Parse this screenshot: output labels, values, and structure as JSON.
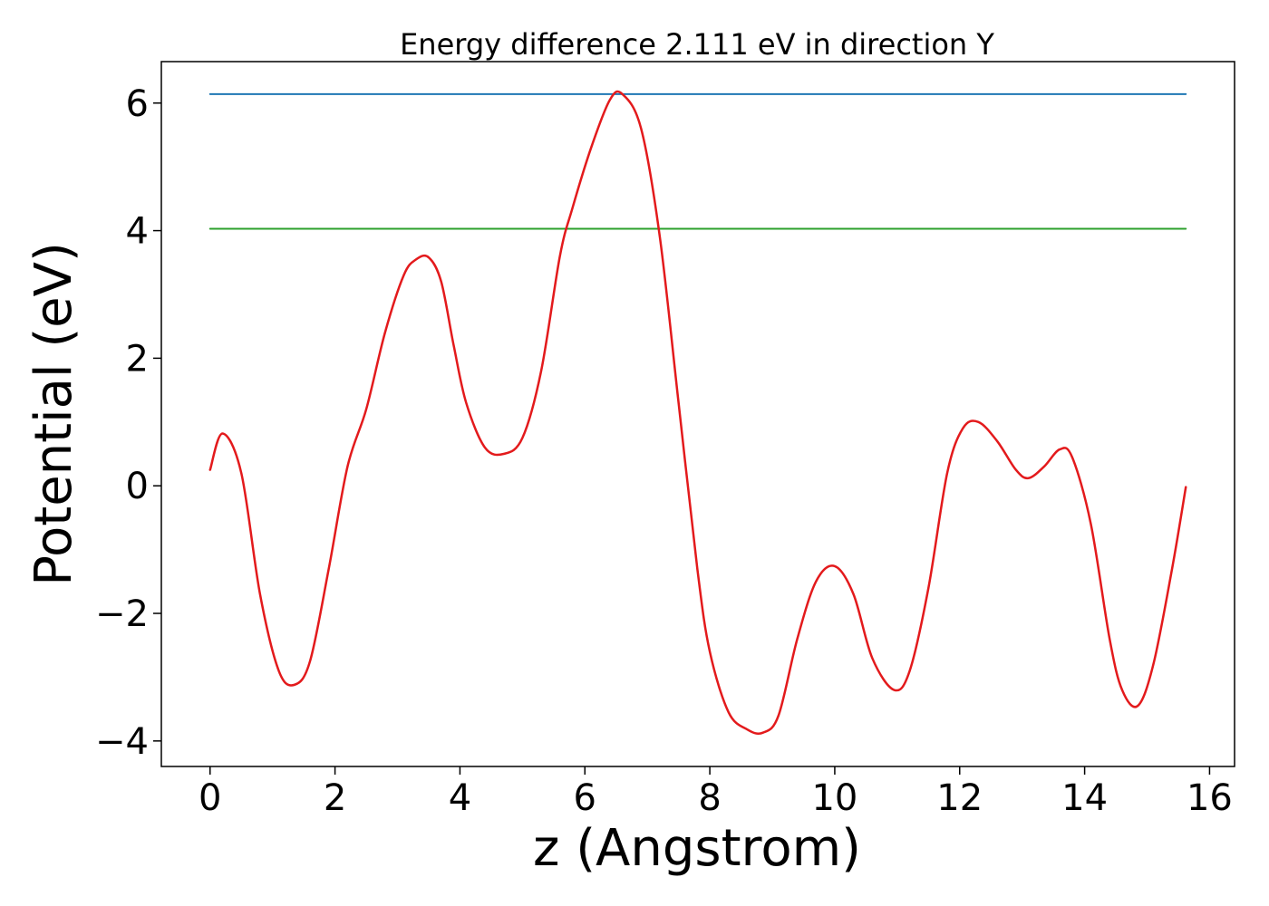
{
  "chart_data": {
    "type": "line",
    "title": "Energy difference 2.111 eV in direction Y",
    "xlabel": "z (Angstrom)",
    "ylabel": "Potential (eV)",
    "xlim": [
      -0.78,
      16.4
    ],
    "ylim": [
      -4.4,
      6.65
    ],
    "xticks": [
      0,
      2,
      4,
      6,
      8,
      10,
      12,
      14,
      16
    ],
    "xtick_labels": [
      "0",
      "2",
      "4",
      "6",
      "8",
      "10",
      "12",
      "14",
      "16"
    ],
    "yticks": [
      -4,
      -2,
      0,
      2,
      4,
      6
    ],
    "ytick_labels": [
      "−4",
      "−2",
      "0",
      "2",
      "4",
      "6"
    ],
    "grid": false,
    "legend": "none",
    "series": [
      {
        "color": "#1f77b4",
        "style": "horizontal-line",
        "x": [
          0,
          15.62
        ],
        "y": [
          6.14,
          6.14
        ]
      },
      {
        "color": "#2ca02c",
        "style": "horizontal-line",
        "x": [
          0,
          15.62
        ],
        "y": [
          4.03,
          4.03
        ]
      },
      {
        "color": "#e31a1c",
        "style": "curve",
        "x": [
          0,
          0.2,
          0.5,
          0.8,
          1.1,
          1.35,
          1.6,
          1.9,
          2.2,
          2.5,
          2.8,
          3.1,
          3.3,
          3.5,
          3.7,
          3.9,
          4.1,
          4.4,
          4.7,
          5.0,
          5.3,
          5.6,
          5.8,
          6.1,
          6.4,
          6.6,
          6.9,
          7.2,
          7.5,
          7.8,
          8.0,
          8.3,
          8.6,
          8.85,
          9.1,
          9.4,
          9.7,
          10.0,
          10.3,
          10.6,
          10.95,
          11.2,
          11.5,
          11.8,
          12.05,
          12.3,
          12.6,
          12.9,
          13.1,
          13.35,
          13.6,
          13.8,
          14.1,
          14.4,
          14.6,
          14.85,
          15.1,
          15.4,
          15.62
        ],
        "y": [
          0.25,
          0.82,
          0.2,
          -1.7,
          -2.9,
          -3.12,
          -2.75,
          -1.3,
          0.3,
          1.2,
          2.4,
          3.3,
          3.55,
          3.58,
          3.2,
          2.2,
          1.3,
          0.6,
          0.5,
          0.75,
          1.8,
          3.6,
          4.35,
          5.3,
          6.05,
          6.14,
          5.6,
          3.9,
          1.3,
          -1.3,
          -2.6,
          -3.55,
          -3.82,
          -3.87,
          -3.6,
          -2.4,
          -1.5,
          -1.26,
          -1.7,
          -2.7,
          -3.2,
          -2.9,
          -1.6,
          0.2,
          0.9,
          1.0,
          0.7,
          0.25,
          0.12,
          0.3,
          0.57,
          0.45,
          -0.6,
          -2.4,
          -3.2,
          -3.45,
          -2.8,
          -1.3,
          -0.02
        ]
      }
    ]
  }
}
